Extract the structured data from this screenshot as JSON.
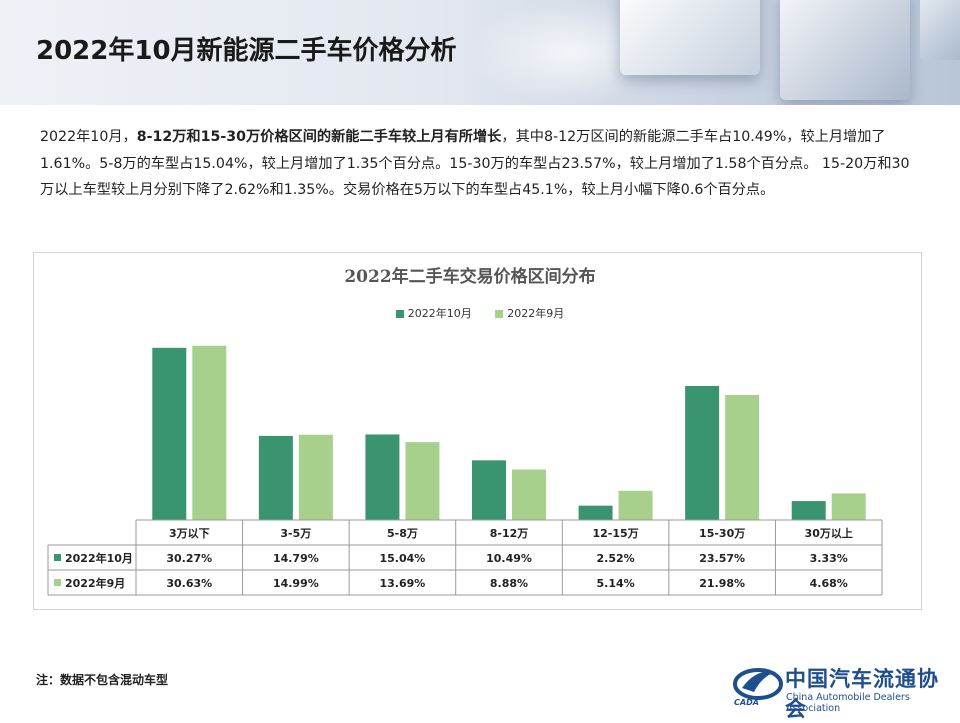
{
  "page": {
    "title": "2022年10月新能源二手车价格分析",
    "para_seg1": "2022年10月，",
    "para_bold": "8-12万和15-30万价格区间的新能二手车较上月有所增长",
    "para_seg2": "，其中8-12万区间的新能源二手车占10.49%，较上月增加了1.61%。5-8万的车型占15.04%，较上月增加了1.35个百分点。15-30万的车型占23.57%，较上月增加了1.58个百分点。 15-20万和30万以上车型较上月分别下降了2.62%和1.35%。交易价格在5万以下的车型占45.1%，较上月小幅下降0.6个百分点。",
    "footnote": "注：数据不包含混动车型",
    "logo": {
      "cn": "中国汽车流通协会",
      "en": "China Automobile Dealers Association",
      "abbr": "CADA"
    }
  },
  "colors": {
    "series1": "#3b9470",
    "series2": "#a8d08d"
  },
  "chart_data": {
    "type": "bar",
    "title": "2022年二手车交易价格区间分布",
    "categories": [
      "3万以下",
      "3-5万",
      "5-8万",
      "8-12万",
      "12-15万",
      "15-30万",
      "30万以上"
    ],
    "series": [
      {
        "name": "2022年10月",
        "values": [
          30.27,
          14.79,
          15.04,
          10.49,
          2.52,
          23.57,
          3.33
        ],
        "labels": [
          "30.27%",
          "14.79%",
          "15.04%",
          "10.49%",
          "2.52%",
          "23.57%",
          "3.33%"
        ]
      },
      {
        "name": "2022年9月",
        "values": [
          30.63,
          14.99,
          13.69,
          8.88,
          5.14,
          21.98,
          4.68
        ],
        "labels": [
          "30.63%",
          "14.99%",
          "13.69%",
          "8.88%",
          "5.14%",
          "21.98%",
          "4.68%"
        ]
      }
    ],
    "ylim": [
      0,
      32
    ],
    "legend": "top",
    "grid": false,
    "data_table": true
  }
}
